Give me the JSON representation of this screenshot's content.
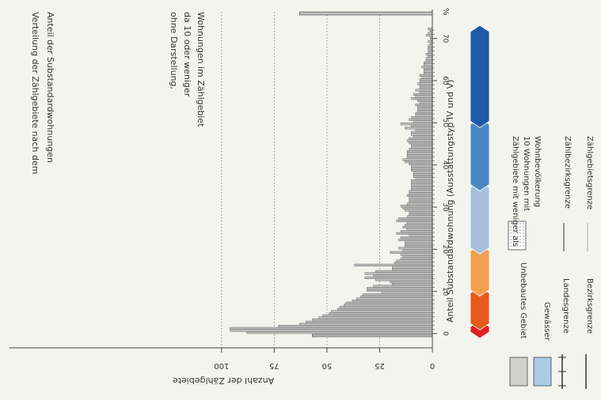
{
  "chart_data": {
    "type": "bar",
    "title": "Verteilung der Zählgebiete nach dem Anteil der Substandardwohnungen",
    "xlabel": "Anteil Substandardwohnung (Ausstattungstyp IV und V)",
    "ylabel": "Anzahl der Zählgebiete",
    "x_unit": "%",
    "xlim": [
      0,
      75
    ],
    "ylim": [
      0,
      100
    ],
    "x_ticks": [
      "0",
      "10",
      "20",
      "30",
      "40",
      "50",
      "60",
      "70"
    ],
    "y_ticks": [
      "0",
      "25",
      "50",
      "75",
      "100"
    ],
    "annotation": "ohne Darstellung, da 10 oder weniger Wohnungen im Zählgebiet",
    "annotation_value": 57,
    "bin_width": 0.5,
    "x": [
      0,
      0.5,
      1,
      1.5,
      2,
      2.5,
      3,
      3.5,
      4,
      4.5,
      5,
      5.5,
      6,
      6.5,
      7,
      7.5,
      8,
      8.5,
      9,
      9.5,
      10,
      10.5,
      11,
      11.5,
      12,
      12.5,
      13,
      13.5,
      14,
      14.5,
      15,
      15.5,
      16,
      16.5,
      17,
      17.5,
      18,
      18.5,
      19,
      19.5,
      20,
      20.5,
      21,
      21.5,
      22,
      22.5,
      23,
      23.5,
      24,
      24.5,
      25,
      25.5,
      26,
      26.5,
      27,
      27.5,
      28,
      28.5,
      29,
      29.5,
      30,
      30.5,
      31,
      31.5,
      32,
      32.5,
      33,
      33.5,
      34,
      34.5,
      35,
      35.5,
      36,
      36.5,
      37,
      37.5,
      38,
      38.5,
      39,
      39.5,
      40,
      40.5,
      41,
      41.5,
      42,
      42.5,
      43,
      43.5,
      44,
      44.5,
      45,
      45.5,
      46,
      46.5,
      47,
      47.5,
      48,
      48.5,
      49,
      49.5,
      50,
      50.5,
      51,
      51.5,
      52,
      52.5,
      53,
      53.5,
      54,
      54.5,
      55,
      55.5,
      56,
      56.5,
      57,
      57.5,
      58,
      58.5,
      59,
      59.5,
      60,
      60.5,
      61,
      61.5,
      62,
      62.5,
      63,
      63.5,
      64,
      64.5,
      65,
      65.5,
      66,
      66.5,
      67,
      67.5,
      68,
      68.5,
      69,
      69.5,
      70,
      70.5,
      71,
      71.5,
      72
    ],
    "values": [
      88,
      96,
      96,
      73,
      63,
      60,
      57,
      54,
      52,
      49,
      48,
      45,
      44,
      42,
      41,
      38,
      36,
      34,
      33,
      24,
      31,
      31,
      28,
      19,
      20,
      27,
      32,
      28,
      32,
      27,
      19,
      19,
      37,
      18,
      17,
      15,
      14,
      15,
      20,
      14,
      16,
      13,
      13,
      13,
      16,
      15,
      11,
      17,
      15,
      12,
      14,
      13,
      12,
      17,
      16,
      12,
      11,
      11,
      13,
      14,
      15,
      12,
      11,
      11,
      11,
      12,
      11,
      11,
      10,
      10,
      10,
      10,
      10,
      8,
      9,
      9,
      9,
      10,
      10,
      10,
      11,
      13,
      14,
      12,
      12,
      12,
      12,
      11,
      10,
      10,
      11,
      12,
      11,
      9,
      10,
      10,
      8,
      13,
      10,
      15,
      9,
      11,
      10,
      8,
      8,
      7,
      7,
      7,
      8,
      6,
      7,
      10,
      8,
      9,
      6,
      8,
      6,
      6,
      7,
      6,
      6,
      5,
      6,
      4,
      4,
      4,
      5,
      4,
      4,
      3,
      3,
      2,
      3,
      2,
      2,
      2,
      2,
      1,
      2,
      1,
      1,
      3,
      2,
      1,
      2
    ]
  },
  "legend": {
    "scale_label": "%",
    "items": [
      {
        "label": "Unbebautes Gebiet"
      },
      {
        "label": "Gewässer"
      },
      {
        "label": "Landesgrenze"
      },
      {
        "label": "Bezirksgrenze"
      },
      {
        "label": "Zählgebiete mit weniger als 10 Wohnungen mit Wohnbevölkerung"
      },
      {
        "label": "Zählbezirksgrenze"
      },
      {
        "label": "Zählgebietsgrenze"
      }
    ],
    "scale_colors": [
      "#e02020",
      "#e65a1e",
      "#f0a050",
      "#a8c0dc",
      "#4a88c4",
      "#1e5aa8"
    ],
    "fill_gray": "#cfcfcb",
    "fill_blue": "#a9cbe6",
    "bar_color": "#bcbcbc"
  }
}
